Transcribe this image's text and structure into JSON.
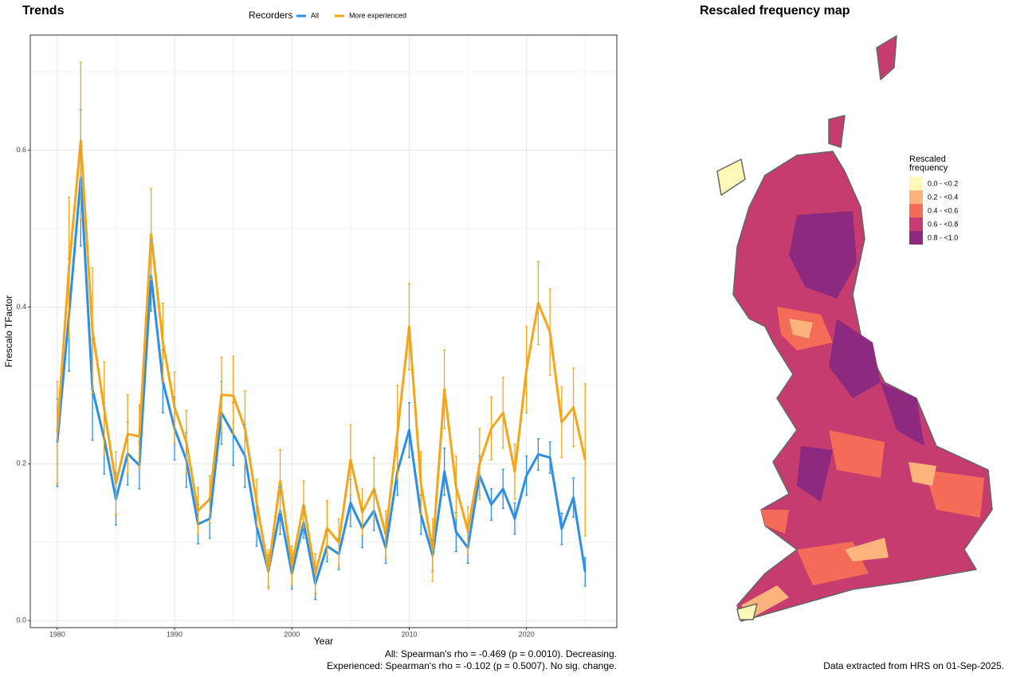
{
  "chart_data": [
    {
      "type": "line",
      "title": "Trends",
      "legend_title": "Recorders",
      "x_label": "Year",
      "y_label": "Frescalo TFactor",
      "x": [
        1980,
        1981,
        1982,
        1983,
        1984,
        1985,
        1986,
        1987,
        1988,
        1989,
        1990,
        1991,
        1992,
        1993,
        1994,
        1995,
        1996,
        1997,
        1998,
        1999,
        2000,
        2001,
        2002,
        2003,
        2004,
        2005,
        2006,
        2007,
        2008,
        2009,
        2010,
        2011,
        2012,
        2013,
        2014,
        2015,
        2016,
        2017,
        2018,
        2019,
        2020,
        2021,
        2022,
        2023,
        2024,
        2025
      ],
      "series": [
        {
          "name": "All",
          "color": "#2b8fe6",
          "values": [
            0.227,
            0.39,
            0.565,
            0.295,
            0.232,
            0.155,
            0.213,
            0.198,
            0.44,
            0.305,
            0.245,
            0.205,
            0.123,
            0.13,
            0.265,
            0.238,
            0.21,
            0.12,
            0.063,
            0.14,
            0.06,
            0.125,
            0.047,
            0.095,
            0.085,
            0.15,
            0.118,
            0.14,
            0.093,
            0.19,
            0.243,
            0.135,
            0.083,
            0.19,
            0.113,
            0.093,
            0.185,
            0.148,
            0.168,
            0.13,
            0.185,
            0.212,
            0.208,
            0.117,
            0.157,
            0.062
          ],
          "errors": [
            0.056,
            0.072,
            0.087,
            0.065,
            0.045,
            0.033,
            0.04,
            0.03,
            0.045,
            0.04,
            0.04,
            0.035,
            0.025,
            0.025,
            0.04,
            0.04,
            0.04,
            0.025,
            0.02,
            0.03,
            0.02,
            0.02,
            0.02,
            0.02,
            0.02,
            0.03,
            0.025,
            0.025,
            0.02,
            0.03,
            0.035,
            0.025,
            0.02,
            0.03,
            0.025,
            0.02,
            0.025,
            0.02,
            0.025,
            0.02,
            0.025,
            0.02,
            0.02,
            0.02,
            0.025,
            0.018
          ]
        },
        {
          "name": "More experienced",
          "color": "#f5a518",
          "values": [
            0.24,
            0.45,
            0.612,
            0.37,
            0.27,
            0.175,
            0.238,
            0.235,
            0.493,
            0.355,
            0.272,
            0.228,
            0.14,
            0.155,
            0.288,
            0.287,
            0.245,
            0.15,
            0.065,
            0.178,
            0.07,
            0.148,
            0.06,
            0.118,
            0.1,
            0.205,
            0.138,
            0.168,
            0.11,
            0.24,
            0.375,
            0.175,
            0.09,
            0.295,
            0.17,
            0.115,
            0.2,
            0.245,
            0.265,
            0.19,
            0.32,
            0.405,
            0.368,
            0.253,
            0.272,
            0.205
          ],
          "errors": [
            0.065,
            0.09,
            0.1,
            0.08,
            0.06,
            0.04,
            0.05,
            0.04,
            0.058,
            0.05,
            0.045,
            0.04,
            0.03,
            0.03,
            0.048,
            0.05,
            0.048,
            0.03,
            0.025,
            0.04,
            0.025,
            0.03,
            0.025,
            0.035,
            0.03,
            0.045,
            0.03,
            0.04,
            0.03,
            0.06,
            0.055,
            0.04,
            0.04,
            0.05,
            0.04,
            0.03,
            0.045,
            0.04,
            0.045,
            0.035,
            0.055,
            0.053,
            0.055,
            0.045,
            0.05,
            0.097
          ]
        }
      ],
      "xlim": [
        1977.7,
        2027.7
      ],
      "xticks": [
        1980,
        1990,
        2000,
        2010,
        2020
      ],
      "ylim": [
        -0.009,
        0.747
      ],
      "yticks": [
        {
          "value": 0,
          "label": "0.0"
        },
        0.2,
        0.4,
        0.6
      ],
      "grid": true,
      "annotations": [
        "All: Spearman's rho = -0.469 (p = 0.0010). Decreasing.",
        "Experienced: Spearman's rho = -0.102 (p = 0.5007). No sig. change."
      ]
    },
    {
      "type": "map",
      "title": "Rescaled frequency map",
      "legend_title": [
        "Rescaled",
        "frequency"
      ],
      "legend": [
        {
          "label": "0.0 - <0.2",
          "color": "#fff9b8"
        },
        {
          "label": "0.2 - <0.4",
          "color": "#fdb47c"
        },
        {
          "label": "0.4 - <0.6",
          "color": "#f46c58"
        },
        {
          "label": "0.6 - <0.8",
          "color": "#c63c6e"
        },
        {
          "label": "0.8 - <1.0",
          "color": "#8c2a80"
        }
      ],
      "footnote": "Data extracted from HRS on 01-Sep-2025."
    }
  ]
}
